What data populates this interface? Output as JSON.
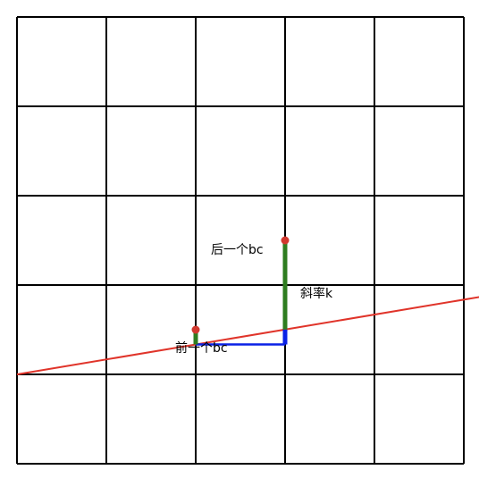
{
  "diagram": {
    "grid": {
      "rows": 5,
      "cols": 5,
      "color": "#000000"
    },
    "line": {
      "color": "#e0342a",
      "start": [
        0,
        1
      ],
      "end": [
        5.2,
        1.87
      ]
    },
    "prev_point": {
      "x": 2,
      "y": 1.5
    },
    "next_point": {
      "x": 3,
      "y": 2.5
    },
    "dot_color": "#d1382e",
    "segment_color": "#2e7d1f",
    "slope_color": "#0a21e6",
    "labels": {
      "next_bc": "后一个bc",
      "prev_bc": "前一个bc",
      "slope": "斜率k"
    }
  }
}
